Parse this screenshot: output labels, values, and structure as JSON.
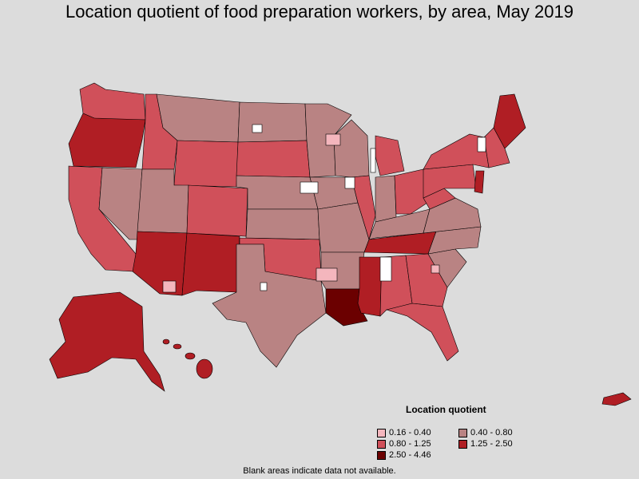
{
  "title": "Location quotient of food preparation workers, by area, May 2019",
  "legend": {
    "title": "Location quotient",
    "items": [
      {
        "label": "0.16 - 0.40",
        "color": "#f4b6bd"
      },
      {
        "label": "0.40 - 0.80",
        "color": "#b98383"
      },
      {
        "label": "0.80 - 1.25",
        "color": "#d0505a"
      },
      {
        "label": "1.25 - 2.50",
        "color": "#b01e24"
      },
      {
        "label": "2.50 - 4.46",
        "color": "#6b0000"
      }
    ]
  },
  "footnote": "Blank areas indicate data not available.",
  "colors": {
    "background": "#dcdcdc",
    "border": "#000000",
    "no_data": "#ffffff"
  }
}
